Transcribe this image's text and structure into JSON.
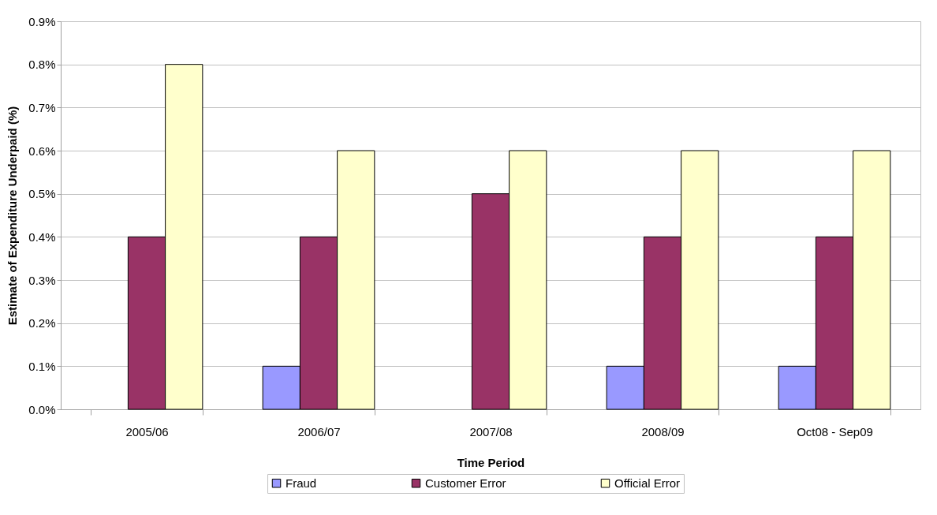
{
  "chart_data": {
    "type": "bar",
    "xlabel": "Time Period",
    "ylabel": "Estimate of Expenditure Underpaid (%)",
    "categories": [
      "2005/06",
      "2006/07",
      "2007/08",
      "2008/09",
      "Oct08 - Sep09"
    ],
    "series": [
      {
        "name": "Fraud",
        "color": "#9999ff",
        "values": [
          null,
          0.1,
          null,
          0.1,
          0.1
        ]
      },
      {
        "name": "Customer Error",
        "color": "#993366",
        "values": [
          0.4,
          0.4,
          0.5,
          0.4,
          0.4
        ]
      },
      {
        "name": "Official Error",
        "color": "#ffffcc",
        "values": [
          0.8,
          0.6,
          0.6,
          0.6,
          0.6
        ]
      }
    ],
    "ylim": [
      0,
      0.9
    ],
    "yticks": [
      {
        "value": 0,
        "label": "0.0%"
      },
      {
        "value": 0.1,
        "label": "0.1%"
      },
      {
        "value": 0.2,
        "label": "0.2%"
      },
      {
        "value": 0.3,
        "label": "0.3%"
      },
      {
        "value": 0.4,
        "label": "0.4%"
      },
      {
        "value": 0.5,
        "label": "0.5%"
      },
      {
        "value": 0.6,
        "label": "0.6%"
      },
      {
        "value": 0.7,
        "label": "0.7%"
      },
      {
        "value": 0.8,
        "label": "0.8%"
      },
      {
        "value": 0.9,
        "label": "0.9%"
      }
    ],
    "grid": "y",
    "legend": "bottom"
  }
}
